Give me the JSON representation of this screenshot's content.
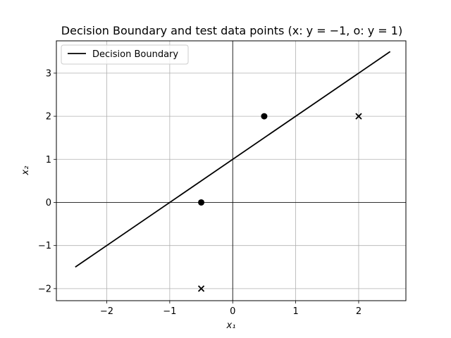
{
  "chart_data": {
    "type": "scatter",
    "title": "Decision Boundary and test data points (x: y = −1, o: y = 1)",
    "xlabel": "x₁",
    "ylabel": "x₂",
    "xlim": [
      -2.8,
      2.75
    ],
    "ylim": [
      -2.28,
      3.75
    ],
    "xticks": [
      -2,
      -1,
      0,
      1,
      2
    ],
    "yticks": [
      -2,
      -1,
      0,
      1,
      2,
      3
    ],
    "xtick_labels": [
      "−2",
      "−1",
      "0",
      "1",
      "2"
    ],
    "ytick_labels": [
      "−2",
      "−1",
      "0",
      "1",
      "2",
      "3"
    ],
    "grid": true,
    "legend_position": "top-left",
    "series": [
      {
        "name": "Decision Boundary",
        "kind": "line",
        "color": "#000000",
        "x": [
          -2.5,
          2.5
        ],
        "y": [
          -1.5,
          3.5
        ]
      },
      {
        "kind": "scatter",
        "marker": "x",
        "class_label": -1,
        "color": "#000000",
        "points": [
          [
            -0.5,
            -2
          ],
          [
            2,
            2
          ]
        ]
      },
      {
        "kind": "scatter",
        "marker": "o",
        "class_label": 1,
        "color": "#000000",
        "points": [
          [
            -0.5,
            0
          ],
          [
            0.5,
            2
          ]
        ]
      }
    ]
  }
}
